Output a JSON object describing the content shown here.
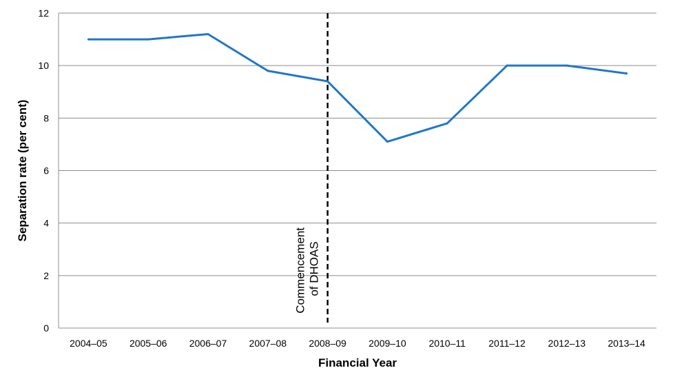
{
  "chart_data": {
    "type": "line",
    "title": "",
    "xlabel": "Financial Year",
    "ylabel": "Separation rate (per cent)",
    "ylim": [
      0,
      12
    ],
    "yticks": [
      0,
      2,
      4,
      6,
      8,
      10,
      12
    ],
    "grid": "horizontal",
    "categories": [
      "2004–05",
      "2005–06",
      "2006–07",
      "2007–08",
      "2008–09",
      "2009–10",
      "2010–11",
      "2011–12",
      "2012–13",
      "2013–14"
    ],
    "series": [
      {
        "values": [
          11.0,
          11.0,
          11.2,
          9.8,
          9.4,
          7.1,
          7.8,
          10.0,
          10.0,
          9.7
        ],
        "color": "#1f77c9"
      }
    ],
    "annotation": {
      "at_category": "2008–09",
      "style": "dashed vertical line",
      "color": "#000000",
      "lines": [
        "Commencement",
        "of DHOAS"
      ]
    }
  }
}
